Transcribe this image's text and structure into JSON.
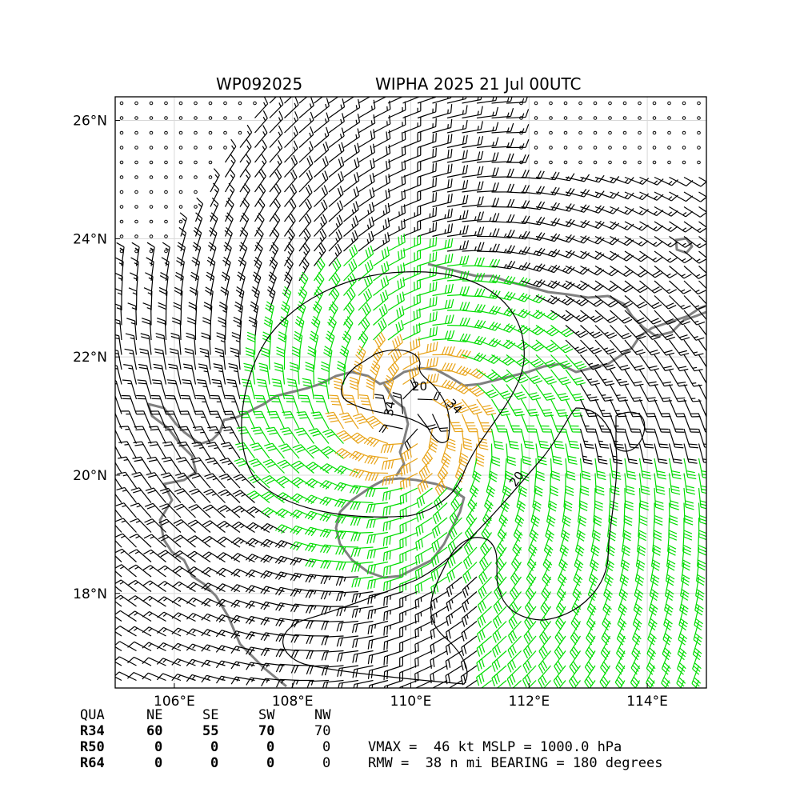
{
  "header": {
    "storm_id": "WP092025",
    "storm_title": "WIPHA 2025 21 Jul 00UTC"
  },
  "map": {
    "lat_labels": [
      "18°N",
      "20°N",
      "22°N",
      "24°N",
      "26°N"
    ],
    "lon_labels": [
      "106°E",
      "108°E",
      "110°E",
      "112°E",
      "114°E"
    ],
    "lat_values": [
      18,
      20,
      22,
      24,
      26
    ],
    "lon_values": [
      106,
      108,
      110,
      112,
      114
    ],
    "lon_range": [
      105.0,
      115.0
    ],
    "lat_range": [
      16.4,
      26.4
    ],
    "contour_labels": [
      "20",
      "34",
      "34",
      "20"
    ],
    "colors": {
      "barb_low": "#000000",
      "barb_34kt": "#00dd00",
      "barb_50kt": "#e8a317",
      "coastline": "#808080",
      "contour": "#000000",
      "grid": "#d8d8d8"
    },
    "storm_center": {
      "lon": 110.0,
      "lat": 21.0
    }
  },
  "quadrant_table": {
    "headers": [
      "QUA",
      "NE",
      "SE",
      "SW",
      "NW"
    ],
    "rows": [
      {
        "label": "R34",
        "values": [
          "60",
          "55",
          "70",
          "70"
        ]
      },
      {
        "label": "R50",
        "values": [
          "0",
          "0",
          "0",
          "0"
        ]
      },
      {
        "label": "R64",
        "values": [
          "0",
          "0",
          "0",
          "0"
        ]
      }
    ]
  },
  "summary": {
    "line1": "VMAX =  46 kt MSLP = 1000.0 hPa",
    "line2": "RMW =  38 n mi BEARING = 180 degrees"
  }
}
